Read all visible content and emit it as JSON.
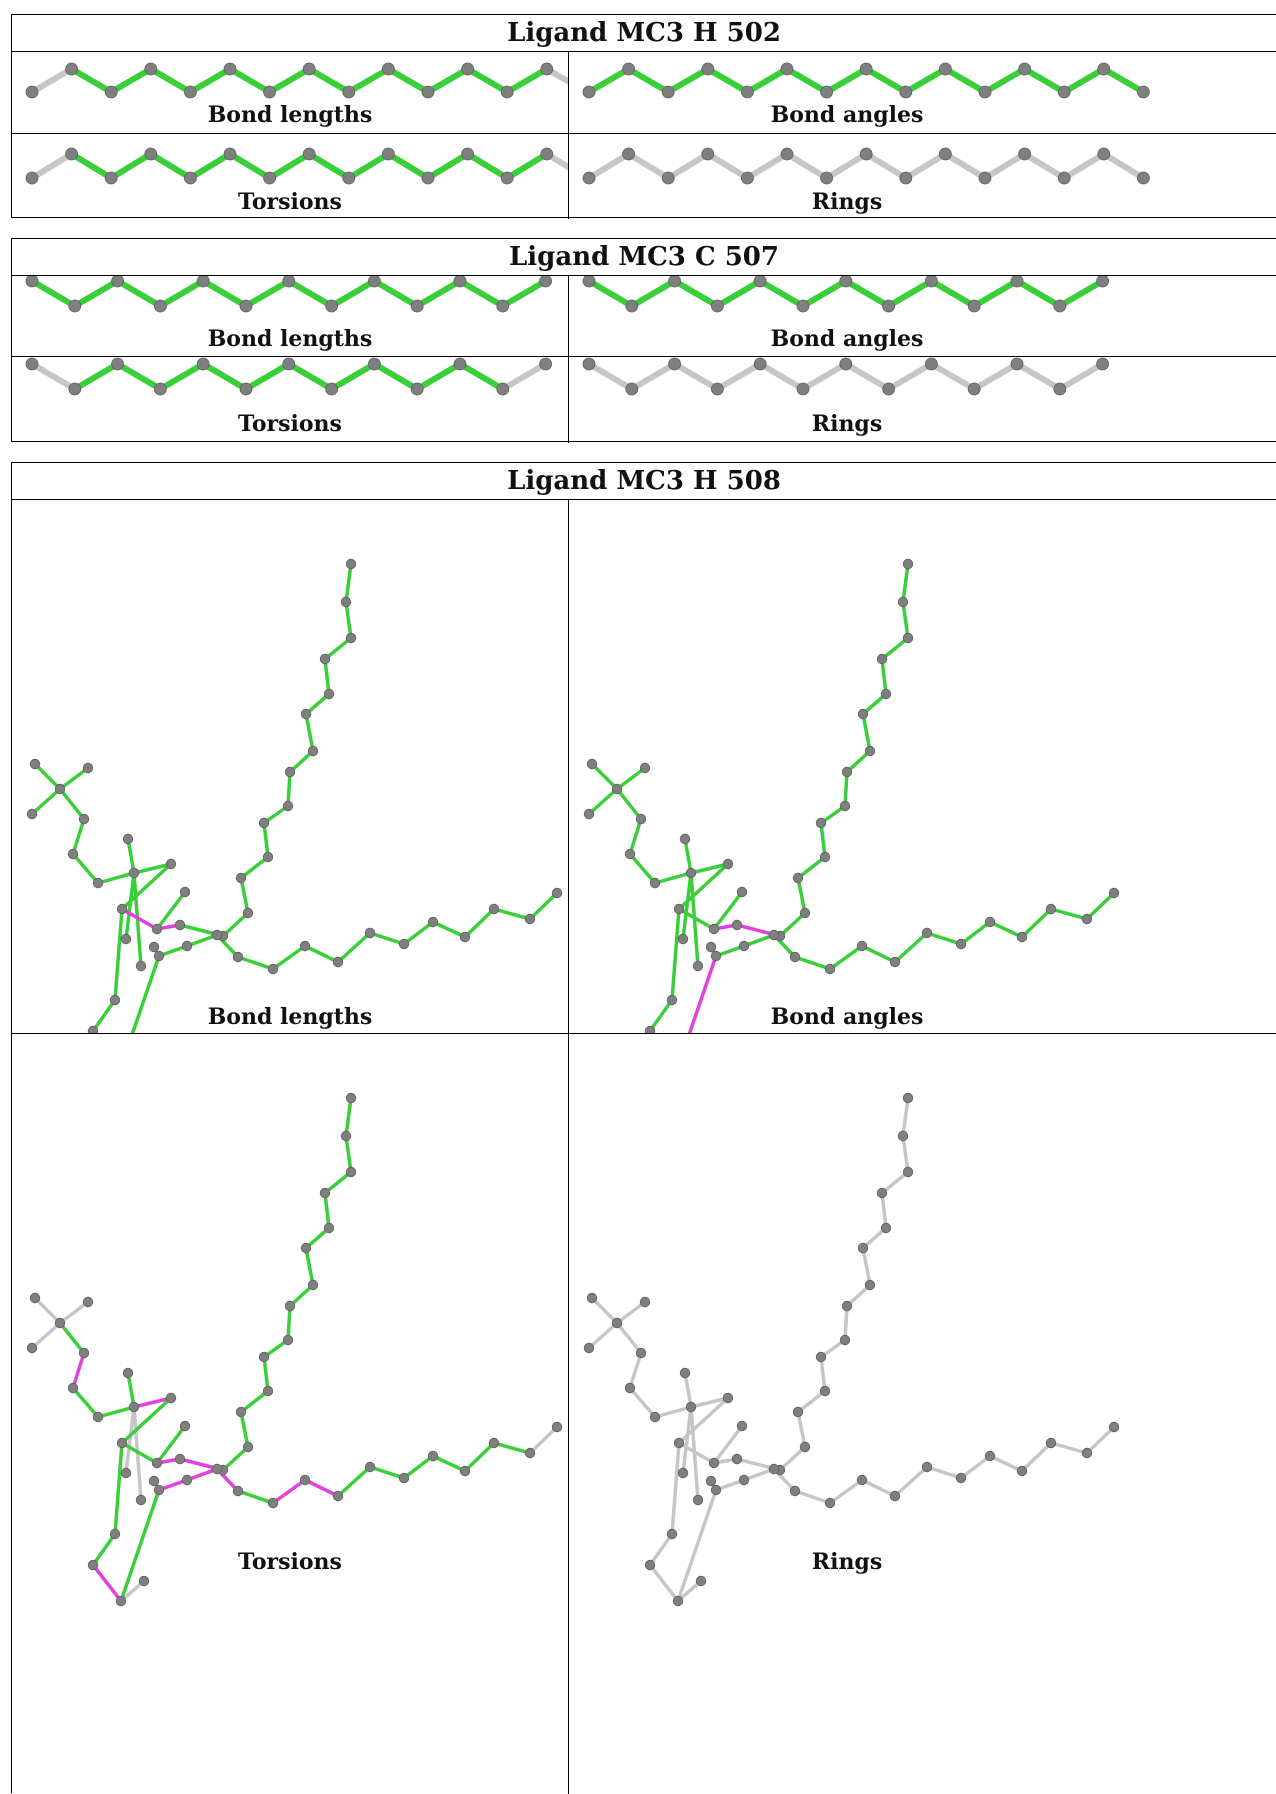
{
  "colors": {
    "ok": "#39cf39",
    "outlier": "#e141e1",
    "neutral": "#c6c6c6",
    "atom": "#7f7f7f"
  },
  "blocks": [
    {
      "title": "Ligand MC3 H 502",
      "panels": [
        {
          "caption": "Bond lengths",
          "bonds": [
            "n",
            "ok",
            "ok",
            "ok",
            "ok",
            "ok",
            "ok",
            "ok",
            "ok",
            "ok",
            "ok",
            "ok",
            "ok",
            "n"
          ]
        },
        {
          "caption": "Bond angles",
          "bonds": [
            "ok",
            "ok",
            "ok",
            "ok",
            "ok",
            "ok",
            "ok",
            "ok",
            "ok",
            "ok",
            "ok",
            "ok",
            "ok",
            "ok"
          ]
        },
        {
          "caption": "Torsions",
          "bonds": [
            "n",
            "ok",
            "ok",
            "ok",
            "ok",
            "ok",
            "ok",
            "ok",
            "ok",
            "ok",
            "ok",
            "ok",
            "ok",
            "n"
          ]
        },
        {
          "caption": "Rings",
          "bonds": [
            "n",
            "n",
            "n",
            "n",
            "n",
            "n",
            "n",
            "n",
            "n",
            "n",
            "n",
            "n",
            "n",
            "n"
          ]
        }
      ]
    },
    {
      "title": "Ligand MC3 C 507",
      "panels": [
        {
          "caption": "Bond lengths",
          "bonds": [
            "ok",
            "ok",
            "ok",
            "ok",
            "ok",
            "ok",
            "ok",
            "ok",
            "ok",
            "ok",
            "ok",
            "ok"
          ]
        },
        {
          "caption": "Bond angles",
          "bonds": [
            "ok",
            "ok",
            "ok",
            "ok",
            "ok",
            "ok",
            "ok",
            "ok",
            "ok",
            "ok",
            "ok",
            "ok"
          ]
        },
        {
          "caption": "Torsions",
          "bonds": [
            "n",
            "ok",
            "ok",
            "ok",
            "ok",
            "ok",
            "ok",
            "ok",
            "ok",
            "ok",
            "ok",
            "n"
          ]
        },
        {
          "caption": "Rings",
          "bonds": [
            "n",
            "n",
            "n",
            "n",
            "n",
            "n",
            "n",
            "n",
            "n",
            "n",
            "n",
            "n"
          ]
        }
      ]
    },
    {
      "title": "Ligand MC3 H 508",
      "panels": [
        {
          "caption": "Bond lengths",
          "pink": [
            [
              8,
              9
            ],
            [
              9,
              10
            ],
            [
              19,
              20
            ]
          ],
          "gray": []
        },
        {
          "caption": "Bond angles",
          "pink": [
            [
              9,
              10
            ],
            [
              23,
              24
            ],
            [
              19,
              20
            ],
            [
              20,
              21
            ]
          ],
          "gray": []
        },
        {
          "caption": "Torsions",
          "pink": [
            [
              4,
              5
            ],
            [
              7,
              8
            ],
            [
              9,
              10
            ],
            [
              23,
              24
            ],
            [
              19,
              20
            ],
            [
              21,
              22
            ],
            [
              22,
              35
            ],
            [
              37,
              38
            ],
            [
              39,
              40
            ],
            [
              22,
              23
            ]
          ],
          "gray": [
            [
              1,
              2
            ],
            [
              1,
              3
            ],
            [
              1,
              4
            ],
            [
              7,
              11
            ],
            [
              7,
              12
            ],
            [
              23,
              43
            ],
            [
              58,
              59
            ]
          ]
        },
        {
          "caption": "Rings",
          "all_neutral": true
        }
      ]
    }
  ]
}
